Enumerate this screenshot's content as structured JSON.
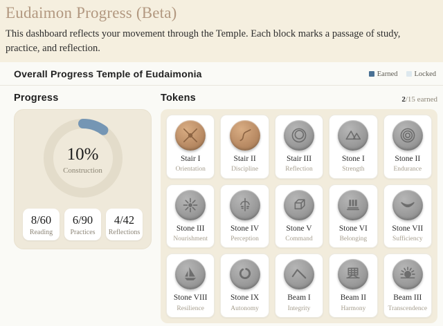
{
  "page": {
    "title": "Eudaimon Progress (Beta)",
    "description": "This dashboard reflects your movement through the Temple. Each block marks a passage of study, practice, and reflection."
  },
  "section": {
    "title": "Overall Progress Temple of Eudaimonia",
    "legend": {
      "earned_label": "Earned",
      "locked_label": "Locked",
      "earned_color": "#4a7194",
      "locked_color": "#dde8ee"
    }
  },
  "progress": {
    "heading": "Progress",
    "percent": 10,
    "percent_label": "10%",
    "center_label": "Construction",
    "arc_color": "#7596b4",
    "track_color": "#e3dcca",
    "stats": [
      {
        "value": "8/60",
        "label": "Reading"
      },
      {
        "value": "6/90",
        "label": "Practices"
      },
      {
        "value": "4/42",
        "label": "Reflections"
      }
    ]
  },
  "tokens": {
    "heading": "Tokens",
    "earned_count": "2",
    "earned_total_text": "/15 earned",
    "items": [
      {
        "name": "Stair I",
        "subtitle": "Orientation",
        "earned": true,
        "icon": "compass-cross"
      },
      {
        "name": "Stair II",
        "subtitle": "Discipline",
        "earned": true,
        "icon": "s-curve"
      },
      {
        "name": "Stair III",
        "subtitle": "Reflection",
        "earned": false,
        "icon": "ring"
      },
      {
        "name": "Stone I",
        "subtitle": "Strength",
        "earned": false,
        "icon": "mountains"
      },
      {
        "name": "Stone II",
        "subtitle": "Endurance",
        "earned": false,
        "icon": "concentric-circles"
      },
      {
        "name": "Stone III",
        "subtitle": "Nourishment",
        "earned": false,
        "icon": "star-rays"
      },
      {
        "name": "Stone IV",
        "subtitle": "Perception",
        "earned": false,
        "icon": "face"
      },
      {
        "name": "Stone V",
        "subtitle": "Command",
        "earned": false,
        "icon": "cube"
      },
      {
        "name": "Stone VI",
        "subtitle": "Belonging",
        "earned": false,
        "icon": "pillars"
      },
      {
        "name": "Stone VII",
        "subtitle": "Sufficiency",
        "earned": false,
        "icon": "crescent"
      },
      {
        "name": "Stone VIII",
        "subtitle": "Resilience",
        "earned": false,
        "icon": "sailboat"
      },
      {
        "name": "Stone IX",
        "subtitle": "Autonomy",
        "earned": false,
        "icon": "open-ring"
      },
      {
        "name": "Beam I",
        "subtitle": "Integrity",
        "earned": false,
        "icon": "peak"
      },
      {
        "name": "Beam II",
        "subtitle": "Harmony",
        "earned": false,
        "icon": "grid-triangle"
      },
      {
        "name": "Beam III",
        "subtitle": "Transcendence",
        "earned": false,
        "icon": "rising-sun"
      }
    ]
  }
}
